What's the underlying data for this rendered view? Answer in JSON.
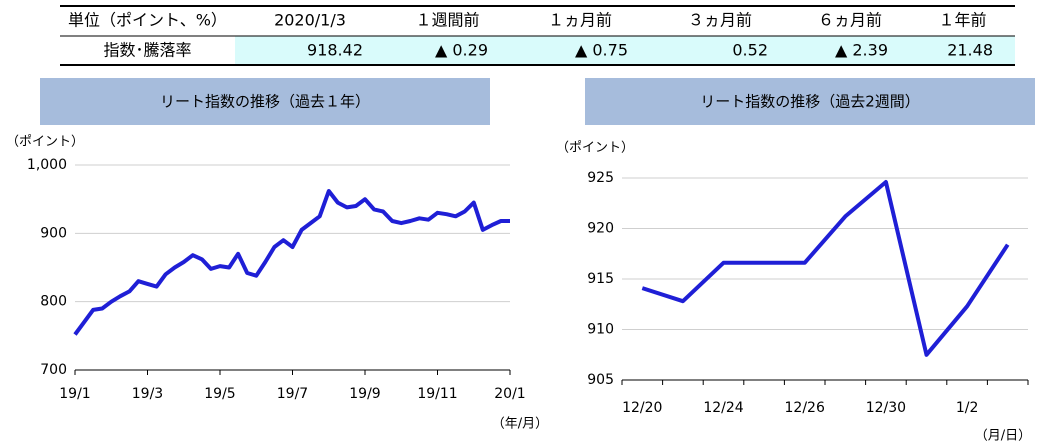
{
  "table": {
    "header": [
      "単位（ポイント、%）",
      "2020/1/3",
      "１週間前",
      "１ヵ月前",
      "３ヵ月前",
      "６ヵ月前",
      "１年前"
    ],
    "rows": [
      [
        "指数･騰落率",
        "918.42",
        "▲ 0.29",
        "▲ 0.75",
        "0.52",
        "▲ 2.39",
        "21.48"
      ]
    ]
  },
  "chart_data": [
    {
      "type": "line",
      "title": "リート指数の推移（過去１年）",
      "y_label": "（ポイント）",
      "x_label": "（年/月）",
      "color": "#1f1fd6",
      "x": [
        0,
        0.25,
        0.5,
        0.75,
        1,
        1.25,
        1.5,
        1.75,
        2,
        2.25,
        2.5,
        2.75,
        3,
        3.25,
        3.5,
        3.75,
        4,
        4.25,
        4.5,
        4.75,
        5,
        5.25,
        5.5,
        5.75,
        6,
        6.25,
        6.5,
        6.75,
        7,
        7.25,
        7.5,
        7.75,
        8,
        8.25,
        8.5,
        8.75,
        9,
        9.25,
        9.5,
        9.75,
        10,
        10.25,
        10.5,
        10.75,
        11,
        11.25,
        11.5,
        11.75,
        12
      ],
      "values": [
        752,
        770,
        788,
        790,
        800,
        808,
        815,
        830,
        826,
        822,
        840,
        850,
        858,
        868,
        862,
        848,
        852,
        850,
        870,
        842,
        838,
        858,
        880,
        890,
        880,
        905,
        915,
        925,
        962,
        945,
        938,
        940,
        950,
        935,
        932,
        918,
        915,
        918,
        922,
        920,
        930,
        928,
        925,
        932,
        945,
        905,
        912,
        918,
        918
      ],
      "xlim": [
        0,
        12
      ],
      "xticks": [
        {
          "value": 0,
          "label": "19/1"
        },
        {
          "value": 2,
          "label": "19/3"
        },
        {
          "value": 4,
          "label": "19/5"
        },
        {
          "value": 6,
          "label": "19/7"
        },
        {
          "value": 8,
          "label": "19/9"
        },
        {
          "value": 10,
          "label": "19/11"
        },
        {
          "value": 12,
          "label": "20/1"
        }
      ],
      "ylim": [
        700,
        1000
      ],
      "yticks": [
        700,
        800,
        900,
        {
          "value": 1000,
          "label": "1,000"
        }
      ],
      "grid": true
    },
    {
      "type": "line",
      "title": "リート指数の推移（過去2週間）",
      "y_label": "（ポイント）",
      "x_label": "（月/日）",
      "color": "#1f1fd6",
      "categories": [
        "12/20",
        null,
        "12/24",
        null,
        "12/26",
        null,
        "12/30",
        null,
        "1/2",
        null
      ],
      "values": [
        914.1,
        912.8,
        916.6,
        916.6,
        916.6,
        921.2,
        924.6,
        907.5,
        912.3,
        918.4
      ],
      "ylim": [
        905,
        925
      ],
      "yticks": [
        905,
        910,
        915,
        920,
        925
      ],
      "grid": true
    }
  ]
}
